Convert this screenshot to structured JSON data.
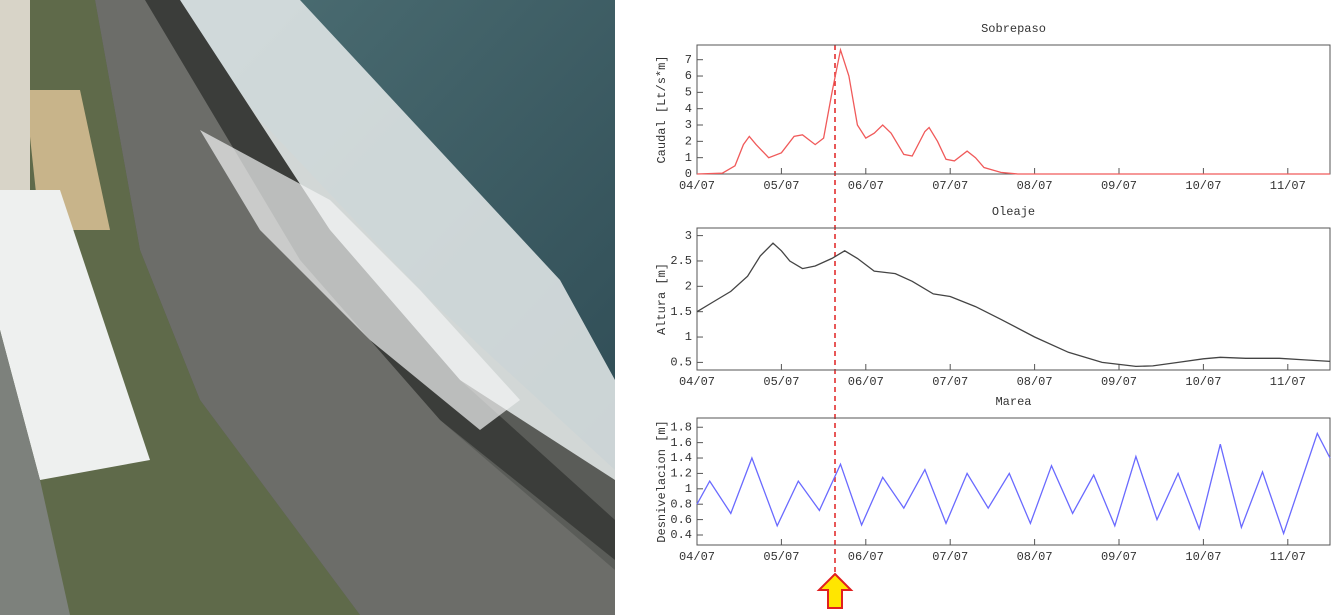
{
  "chart_data": [
    {
      "type": "line",
      "title": "Sobrepaso",
      "ylabel": "Caudal [Lt/s*m]",
      "color": "#f05a5a",
      "x": [
        0,
        0.3,
        0.45,
        0.55,
        0.62,
        0.7,
        0.85,
        1.0,
        1.15,
        1.25,
        1.4,
        1.5,
        1.6,
        1.7,
        1.8,
        1.9,
        2.0,
        2.1,
        2.2,
        2.3,
        2.45,
        2.55,
        2.7,
        2.75,
        2.85,
        2.95,
        3.05,
        3.2,
        3.3,
        3.4,
        3.6,
        3.8,
        7.5
      ],
      "values": [
        0,
        0.05,
        0.5,
        1.8,
        2.3,
        1.8,
        1.0,
        1.3,
        2.3,
        2.4,
        1.8,
        2.2,
        5,
        7.6,
        6,
        3,
        2.2,
        2.5,
        3.0,
        2.5,
        1.2,
        1.1,
        2.6,
        2.85,
        2.0,
        0.9,
        0.8,
        1.4,
        1.0,
        0.4,
        0.1,
        0,
        0
      ],
      "xlim": [
        0,
        7.5
      ],
      "ylim": [
        0,
        7.9
      ],
      "xticks": [
        {
          "value": 0,
          "label": "04/07"
        },
        {
          "value": 1,
          "label": "05/07"
        },
        {
          "value": 2,
          "label": "06/07"
        },
        {
          "value": 3,
          "label": "07/07"
        },
        {
          "value": 4,
          "label": "08/07"
        },
        {
          "value": 5,
          "label": "09/07"
        },
        {
          "value": 6,
          "label": "10/07"
        },
        {
          "value": 7,
          "label": "11/07"
        }
      ],
      "yticks": [
        0,
        1,
        2,
        3,
        4,
        5,
        6,
        7
      ]
    },
    {
      "type": "line",
      "title": "Oleaje",
      "ylabel": "Altura [m]",
      "color": "#444444",
      "x": [
        0,
        0.2,
        0.4,
        0.6,
        0.75,
        0.9,
        1.0,
        1.1,
        1.25,
        1.4,
        1.6,
        1.75,
        1.9,
        2.1,
        2.35,
        2.55,
        2.8,
        3.0,
        3.3,
        3.6,
        4.0,
        4.4,
        4.8,
        5.2,
        5.4,
        5.7,
        6.0,
        6.2,
        6.5,
        6.9,
        7.2,
        7.5
      ],
      "values": [
        1.5,
        1.7,
        1.9,
        2.2,
        2.6,
        2.85,
        2.7,
        2.5,
        2.35,
        2.4,
        2.55,
        2.7,
        2.55,
        2.3,
        2.25,
        2.1,
        1.85,
        1.8,
        1.6,
        1.35,
        1.0,
        0.7,
        0.5,
        0.42,
        0.43,
        0.5,
        0.57,
        0.6,
        0.58,
        0.58,
        0.55,
        0.52
      ],
      "xlim": [
        0,
        7.5
      ],
      "ylim": [
        0.35,
        3.15
      ],
      "xticks": [
        {
          "value": 0,
          "label": "04/07"
        },
        {
          "value": 1,
          "label": "05/07"
        },
        {
          "value": 2,
          "label": "06/07"
        },
        {
          "value": 3,
          "label": "07/07"
        },
        {
          "value": 4,
          "label": "08/07"
        },
        {
          "value": 5,
          "label": "09/07"
        },
        {
          "value": 6,
          "label": "10/07"
        },
        {
          "value": 7,
          "label": "11/07"
        }
      ],
      "yticks": [
        0.5,
        1,
        1.5,
        2,
        2.5,
        3
      ]
    },
    {
      "type": "line",
      "title": "Marea",
      "ylabel": "Desnivelacion [m]",
      "color": "#6a6aff",
      "x": [
        0,
        0.15,
        0.4,
        0.65,
        0.95,
        1.2,
        1.45,
        1.7,
        1.95,
        2.2,
        2.45,
        2.7,
        2.95,
        3.2,
        3.45,
        3.7,
        3.95,
        4.2,
        4.45,
        4.7,
        4.95,
        5.2,
        5.45,
        5.7,
        5.95,
        6.2,
        6.45,
        6.7,
        6.95,
        7.35,
        7.5
      ],
      "values": [
        0.8,
        1.1,
        0.68,
        1.4,
        0.52,
        1.1,
        0.72,
        1.32,
        0.53,
        1.15,
        0.75,
        1.25,
        0.55,
        1.2,
        0.75,
        1.2,
        0.55,
        1.3,
        0.68,
        1.18,
        0.52,
        1.42,
        0.6,
        1.2,
        0.48,
        1.58,
        0.5,
        1.22,
        0.42,
        1.72,
        1.4
      ],
      "xlim": [
        0,
        7.5
      ],
      "ylim": [
        0.27,
        1.92
      ],
      "xticks": [
        {
          "value": 0,
          "label": "04/07"
        },
        {
          "value": 1,
          "label": "05/07"
        },
        {
          "value": 2,
          "label": "06/07"
        },
        {
          "value": 3,
          "label": "07/07"
        },
        {
          "value": 4,
          "label": "08/07"
        },
        {
          "value": 5,
          "label": "09/07"
        },
        {
          "value": 6,
          "label": "10/07"
        },
        {
          "value": 7,
          "label": "11/07"
        }
      ],
      "yticks": [
        0.4,
        0.6,
        0.8,
        1,
        1.2,
        1.4,
        1.6,
        1.8
      ]
    }
  ]
}
